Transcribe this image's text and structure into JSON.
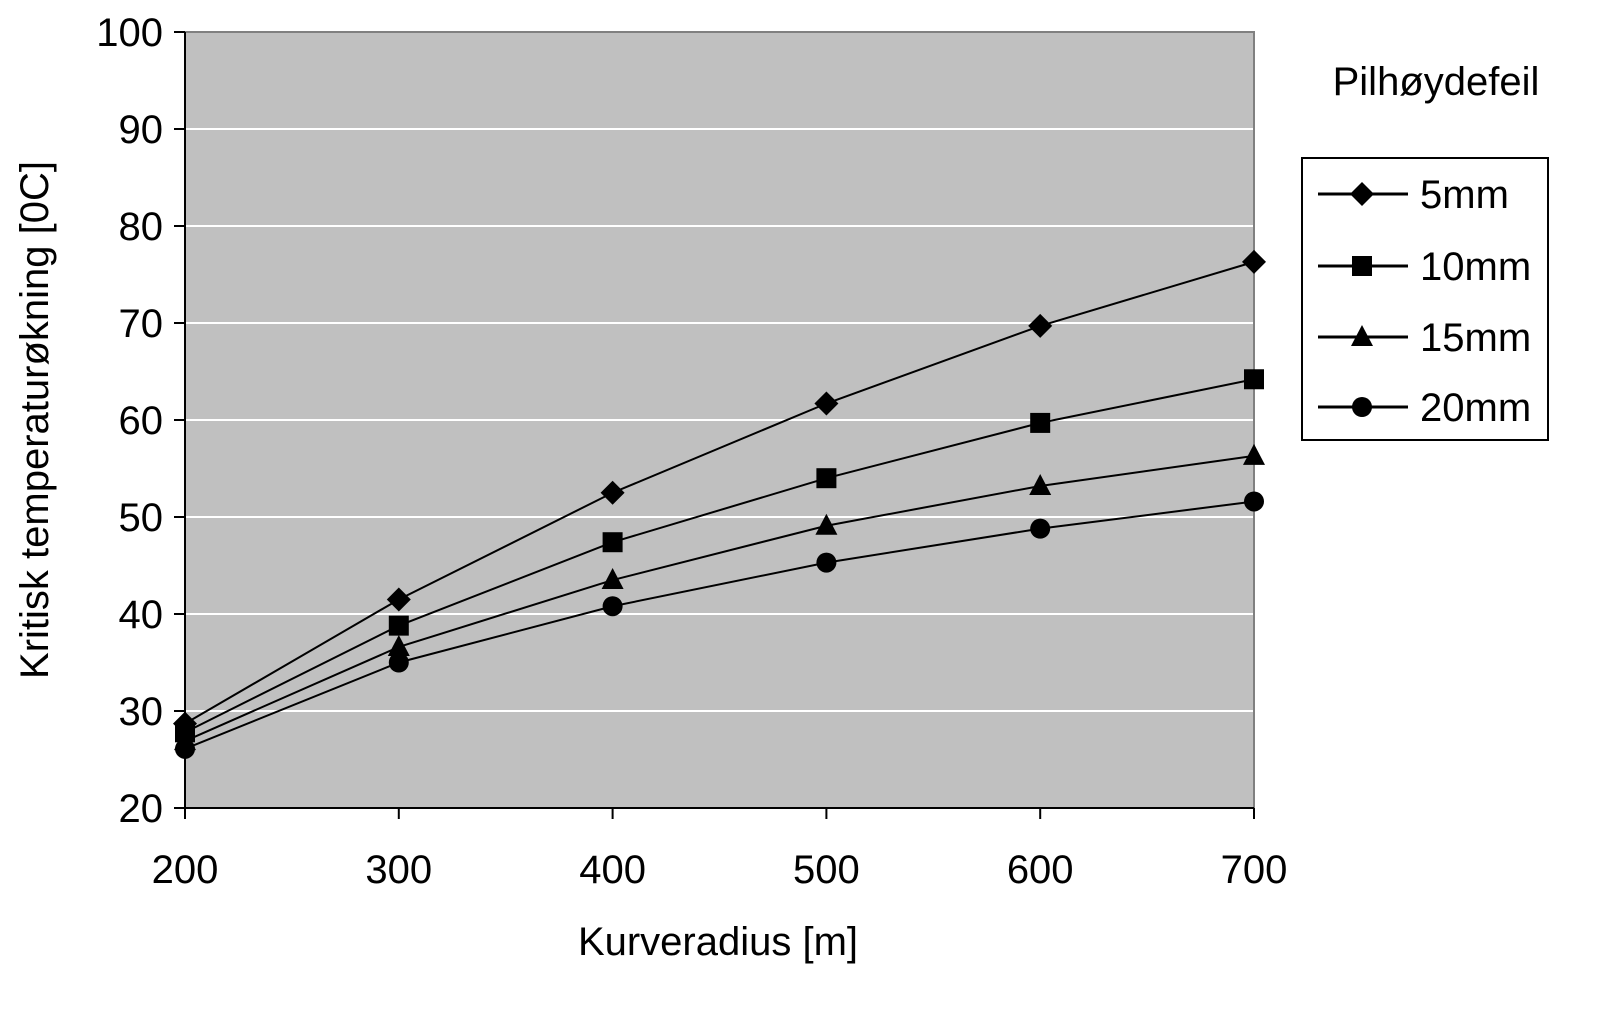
{
  "chart_data": {
    "type": "line",
    "title": "",
    "xlabel": "Kurveradius [m]",
    "ylabel": "Kritisk temperaturøkning [0C]",
    "x": [
      200,
      300,
      400,
      500,
      600,
      700
    ],
    "x_tick_labels": [
      "200",
      "300",
      "400",
      "500",
      "600",
      "700"
    ],
    "xlim": [
      200,
      700
    ],
    "ylim": [
      20,
      100
    ],
    "y_tick_labels": [
      "20",
      "30",
      "40",
      "50",
      "60",
      "70",
      "80",
      "90",
      "100"
    ],
    "grid": "horizontal",
    "plot_background": "#c0c0c0",
    "legend": {
      "title": "Pilhøydefeil",
      "placement": "right"
    },
    "series": [
      {
        "name": "5mm",
        "marker": "diamond",
        "color": "#000000",
        "values": [
          28.7,
          41.5,
          52.5,
          61.7,
          69.7,
          76.3
        ]
      },
      {
        "name": "10mm",
        "marker": "square",
        "color": "#000000",
        "values": [
          27.8,
          38.8,
          47.4,
          54.0,
          59.7,
          64.2
        ]
      },
      {
        "name": "15mm",
        "marker": "triangle",
        "color": "#000000",
        "values": [
          26.9,
          36.6,
          43.5,
          49.1,
          53.2,
          56.3
        ]
      },
      {
        "name": "20mm",
        "marker": "circle",
        "color": "#000000",
        "values": [
          26.1,
          35.0,
          40.8,
          45.3,
          48.8,
          51.6
        ]
      }
    ]
  }
}
